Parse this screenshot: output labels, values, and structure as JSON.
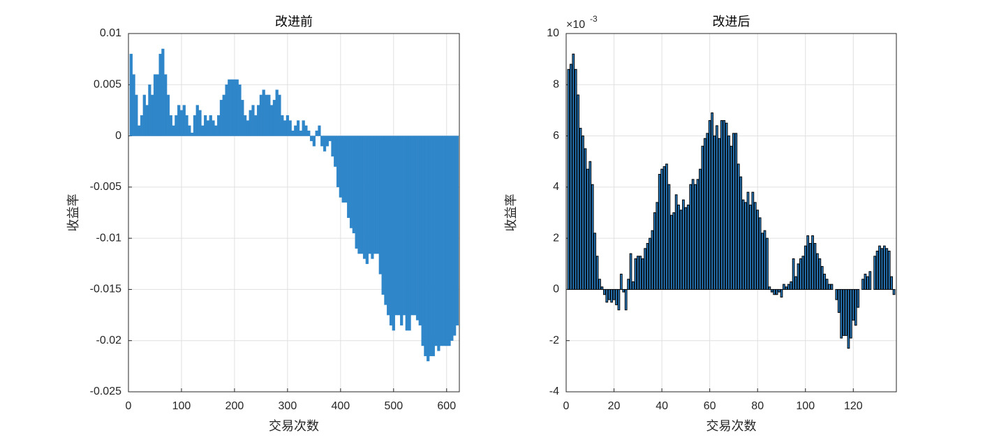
{
  "chart_data": [
    {
      "type": "bar",
      "title": "改进前",
      "xlabel": "交易次数",
      "ylabel": "收益率",
      "color": "#2f86c9",
      "x": [
        5,
        10,
        15,
        20,
        25,
        30,
        35,
        40,
        45,
        50,
        55,
        60,
        65,
        70,
        75,
        80,
        85,
        90,
        95,
        100,
        105,
        110,
        115,
        120,
        125,
        130,
        135,
        140,
        145,
        150,
        155,
        160,
        165,
        170,
        175,
        180,
        185,
        190,
        195,
        200,
        205,
        210,
        215,
        220,
        225,
        230,
        235,
        240,
        245,
        250,
        255,
        260,
        265,
        270,
        275,
        280,
        285,
        290,
        295,
        300,
        305,
        310,
        315,
        320,
        325,
        330,
        335,
        340,
        345,
        350,
        355,
        360,
        365,
        370,
        375,
        380,
        385,
        390,
        395,
        400,
        405,
        410,
        415,
        420,
        425,
        430,
        435,
        440,
        445,
        450,
        455,
        460,
        465,
        470,
        475,
        480,
        485,
        490,
        495,
        500,
        505,
        510,
        515,
        520,
        525,
        530,
        535,
        540,
        545,
        550,
        555,
        560,
        565,
        570,
        575,
        580,
        585,
        590,
        595,
        600,
        605,
        610,
        615,
        620
      ],
      "values": [
        0.008,
        0.006,
        0.004,
        0.001,
        0.002,
        0.004,
        0.003,
        0.005,
        0.004,
        0.006,
        0.006,
        0.008,
        0.0085,
        0.006,
        0.004,
        0.002,
        0.001,
        0.002,
        0.003,
        0.0025,
        0.003,
        0.002,
        0.001,
        0.0003,
        0.002,
        0.003,
        0.0025,
        0.001,
        0.002,
        0.0015,
        0.002,
        0.0015,
        0.001,
        0.002,
        0.0035,
        0.004,
        0.005,
        0.0055,
        0.0055,
        0.0055,
        0.0055,
        0.005,
        0.0035,
        0.002,
        0.0015,
        0.0025,
        0.003,
        0.002,
        0.003,
        0.004,
        0.0045,
        0.004,
        0.004,
        0.003,
        0.0035,
        0.0045,
        0.004,
        0.002,
        0.0015,
        0.002,
        0.0015,
        0.0005,
        0.001,
        0.0015,
        0.0005,
        0.0015,
        0.001,
        0.0005,
        -0.0005,
        -0.001,
        0.0005,
        0.001,
        -0.001,
        -0.0015,
        -0.001,
        -0.0005,
        -0.002,
        -0.003,
        -0.005,
        -0.006,
        -0.0065,
        -0.0065,
        -0.008,
        -0.009,
        -0.0095,
        -0.011,
        -0.0115,
        -0.0115,
        -0.012,
        -0.0125,
        -0.0115,
        -0.012,
        -0.0115,
        -0.0115,
        -0.0135,
        -0.0155,
        -0.0165,
        -0.0175,
        -0.0185,
        -0.019,
        -0.0175,
        -0.0175,
        -0.0185,
        -0.0175,
        -0.019,
        -0.019,
        -0.0175,
        -0.0175,
        -0.018,
        -0.0185,
        -0.0205,
        -0.0215,
        -0.022,
        -0.0215,
        -0.0215,
        -0.0205,
        -0.021,
        -0.0205,
        -0.0205,
        -0.0205,
        -0.0205,
        -0.02,
        -0.0195,
        -0.0185
      ],
      "xlim": [
        0,
        624
      ],
      "ylim": [
        -0.025,
        0.01
      ],
      "xticks": [
        0,
        100,
        200,
        300,
        400,
        500,
        600
      ],
      "yticks": [
        0.01,
        0.005,
        0,
        -0.005,
        -0.01,
        -0.015,
        -0.02,
        -0.025
      ],
      "grid": true
    },
    {
      "type": "bar",
      "title": "改进后",
      "xlabel": "交易次数",
      "ylabel": "收益率",
      "color": "#2a7fc4",
      "edgecolor": "#000000",
      "y_multiplier": {
        "base": "×10",
        "exponent": "-3"
      },
      "x": [
        1,
        2,
        3,
        4,
        5,
        6,
        7,
        8,
        9,
        10,
        11,
        12,
        13,
        14,
        15,
        16,
        17,
        18,
        19,
        20,
        21,
        22,
        23,
        24,
        25,
        26,
        27,
        28,
        29,
        30,
        31,
        32,
        33,
        34,
        35,
        36,
        37,
        38,
        39,
        40,
        41,
        42,
        43,
        44,
        45,
        46,
        47,
        48,
        49,
        50,
        51,
        52,
        53,
        54,
        55,
        56,
        57,
        58,
        59,
        60,
        61,
        62,
        63,
        64,
        65,
        66,
        67,
        68,
        69,
        70,
        71,
        72,
        73,
        74,
        75,
        76,
        77,
        78,
        79,
        80,
        81,
        82,
        83,
        84,
        85,
        86,
        87,
        88,
        89,
        90,
        91,
        92,
        93,
        94,
        95,
        96,
        97,
        98,
        99,
        100,
        101,
        102,
        103,
        104,
        105,
        106,
        107,
        108,
        109,
        110,
        111,
        112,
        113,
        114,
        115,
        116,
        117,
        118,
        119,
        120,
        121,
        122,
        123,
        124,
        125,
        126,
        127,
        128,
        129,
        130,
        131,
        132,
        133,
        134,
        135,
        136,
        137
      ],
      "values": [
        8.6,
        8.8,
        9.2,
        8.6,
        7.6,
        6.3,
        6.0,
        5.5,
        4.7,
        5.0,
        4.1,
        2.2,
        1.3,
        0.4,
        0.1,
        -0.2,
        -0.5,
        -0.4,
        -0.5,
        -0.4,
        -0.6,
        -0.8,
        0.6,
        -0.1,
        -0.8,
        0.4,
        1.4,
        0.3,
        1.2,
        1.3,
        1.3,
        1.2,
        1.6,
        1.8,
        2.0,
        2.3,
        3.0,
        3.4,
        4.5,
        4.7,
        4.8,
        4.9,
        4.1,
        2.9,
        3.0,
        3.7,
        3.3,
        3.1,
        3.5,
        3.2,
        3.3,
        4.1,
        4.3,
        4.1,
        4.3,
        4.7,
        5.6,
        5.9,
        6.1,
        6.6,
        6.9,
        6.0,
        6.4,
        5.9,
        6.6,
        6.6,
        6.5,
        6.0,
        5.6,
        6.1,
        6.1,
        4.9,
        4.4,
        3.5,
        3.4,
        3.8,
        3.3,
        3.8,
        3.4,
        3.1,
        2.8,
        2.2,
        2.3,
        2.0,
        0.1,
        -0.1,
        -0.2,
        -0.2,
        -0.1,
        -0.3,
        0.2,
        0.1,
        0.2,
        0.3,
        1.2,
        0.5,
        1.0,
        1.2,
        1.3,
        1.7,
        2.1,
        1.8,
        2.1,
        1.8,
        1.4,
        1.2,
        0.9,
        0.6,
        0.4,
        0.2,
        0.2,
        0.0,
        -0.4,
        -0.9,
        -1.9,
        -1.8,
        -1.8,
        -2.3,
        -1.9,
        -1.2,
        -1.4,
        -0.7,
        0.0,
        0.4,
        0.6,
        0.5,
        0.7,
        0.0,
        1.3,
        1.5,
        1.7,
        1.6,
        1.7,
        1.6,
        1.5,
        0.5,
        -0.2
      ],
      "xlim": [
        0,
        138
      ],
      "ylim": [
        -4,
        10
      ],
      "xticks": [
        0,
        20,
        40,
        60,
        80,
        100,
        120
      ],
      "yticks": [
        10,
        8,
        6,
        4,
        2,
        0,
        -2,
        -4
      ],
      "grid": true
    }
  ]
}
